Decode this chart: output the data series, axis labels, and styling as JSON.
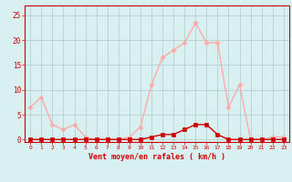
{
  "x": [
    0,
    1,
    2,
    3,
    4,
    5,
    6,
    7,
    8,
    9,
    10,
    11,
    12,
    13,
    14,
    15,
    16,
    17,
    18,
    19,
    20,
    21,
    22,
    23
  ],
  "rafales": [
    6.5,
    8.5,
    3.0,
    2.0,
    3.0,
    0.5,
    0.0,
    0.0,
    0.0,
    0.5,
    2.5,
    11.0,
    16.5,
    18.0,
    19.5,
    23.5,
    19.5,
    19.5,
    6.5,
    11.0,
    0.0,
    0.0,
    0.5,
    0.5
  ],
  "vent_moyen": [
    0,
    0,
    0,
    0,
    0,
    0,
    0,
    0,
    0,
    0,
    0,
    0.5,
    1.0,
    1.0,
    2.0,
    3.0,
    3.0,
    1.0,
    0,
    0,
    0,
    0,
    0,
    0
  ],
  "color_rafales": "#ffaaaa",
  "color_vent": "#cc0000",
  "marker_rafales": "D",
  "marker_vent": "s",
  "xlabel": "Vent moyen/en rafales ( km/h )",
  "yticks": [
    0,
    5,
    10,
    15,
    20,
    25
  ],
  "ylim": [
    -0.5,
    27
  ],
  "xlim": [
    -0.5,
    23.5
  ],
  "bg_color": "#d8f0f0",
  "grid_color": "#b0c8c8",
  "xlabel_color": "#cc0000",
  "tick_color": "#cc0000",
  "line_width": 1.0,
  "marker_size": 2.5
}
